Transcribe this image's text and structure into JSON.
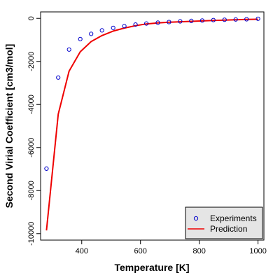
{
  "chart_data": {
    "type": "line",
    "title": "",
    "xlabel": "Temperature [K]",
    "ylabel": "Second Virial Coefficient [cm3/mol]",
    "xlim": [
      260,
      1020
    ],
    "ylim": [
      -10300,
      300
    ],
    "xticks": [
      400,
      600,
      800,
      1000
    ],
    "yticks": [
      0,
      -2000,
      -4000,
      -6000,
      -8000,
      -10000
    ],
    "xtick_labels": [
      "400",
      "600",
      "800",
      "1000"
    ],
    "ytick_labels": [
      "0",
      "-2000",
      "-4000",
      "-6000",
      "-8000",
      "-10000"
    ],
    "grid": false,
    "legend_position": "bottom-right",
    "series": [
      {
        "name": "Experiments",
        "kind": "scatter",
        "marker": "open-circle",
        "color": "#0000cc",
        "x": [
          280,
          320,
          357,
          395,
          432,
          469,
          507,
          545,
          583,
          620,
          659,
          697,
          735,
          773,
          810,
          848,
          886,
          924,
          961,
          1000
        ],
        "y": [
          -6980,
          -2750,
          -1450,
          -960,
          -720,
          -560,
          -440,
          -360,
          -290,
          -240,
          -200,
          -170,
          -140,
          -120,
          -100,
          -80,
          -65,
          -50,
          -40,
          -20
        ]
      },
      {
        "name": "Prediction",
        "kind": "line",
        "color": "#ee0000",
        "x": [
          280,
          320,
          357,
          395,
          432,
          469,
          507,
          545,
          583,
          620,
          659,
          697,
          735,
          773,
          810,
          848,
          886,
          924,
          961,
          1000
        ],
        "y": [
          -9850,
          -4450,
          -2450,
          -1550,
          -1080,
          -800,
          -590,
          -450,
          -340,
          -260,
          -210,
          -180,
          -160,
          -140,
          -120,
          -100,
          -80,
          -65,
          -50,
          -40
        ]
      }
    ]
  }
}
